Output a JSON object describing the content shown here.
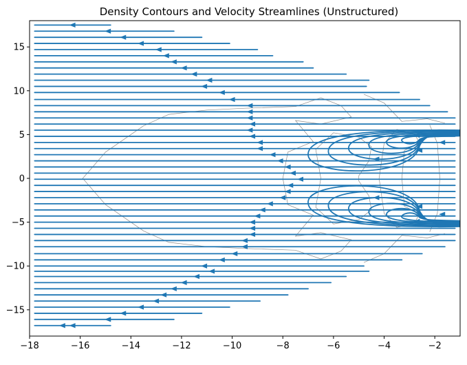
{
  "chart_data": {
    "type": "streamplot",
    "title": "Density Contours and Velocity Streamlines (Unstructured)",
    "xlabel": "",
    "ylabel": "",
    "xlim": [
      -18,
      -1
    ],
    "ylim": [
      -18,
      18
    ],
    "x_ticks": [
      -18,
      -16,
      -14,
      -12,
      -10,
      -8,
      -6,
      -4,
      -2
    ],
    "x_tick_labels": [
      "−18",
      "−16",
      "−14",
      "−12",
      "−10",
      "−8",
      "−6",
      "−4",
      "−2"
    ],
    "y_ticks": [
      -15,
      -10,
      -5,
      0,
      5,
      10,
      15
    ],
    "y_tick_labels": [
      "−15",
      "−10",
      "−5",
      "0",
      "5",
      "10",
      "15"
    ],
    "grid": false,
    "legend": "none",
    "stream_color": "#1f77b4",
    "contour_color": "#8c8c8c",
    "streamlines": [
      {
        "y": 17.5,
        "x_start": -14.8,
        "x_end": -17.8,
        "arrow_x": -16.3
      },
      {
        "y": 16.8,
        "x_start": -12.3,
        "x_end": -17.8,
        "arrow_x": -14.9
      },
      {
        "y": 16.1,
        "x_start": -11.2,
        "x_end": -17.8,
        "arrow_x": -14.3
      },
      {
        "y": 15.4,
        "x_start": -10.1,
        "x_end": -17.8,
        "arrow_x": -13.6
      },
      {
        "y": 14.7,
        "x_start": -9.0,
        "x_end": -17.8,
        "arrow_x": -12.9
      },
      {
        "y": 14.0,
        "x_start": -8.4,
        "x_end": -17.8,
        "arrow_x": -12.6
      },
      {
        "y": 13.3,
        "x_start": -7.2,
        "x_end": -17.8,
        "arrow_x": -12.3
      },
      {
        "y": 12.6,
        "x_start": -6.8,
        "x_end": -17.8,
        "arrow_x": -11.9
      },
      {
        "y": 11.9,
        "x_start": -5.5,
        "x_end": -17.8,
        "arrow_x": -11.5
      },
      {
        "y": 11.2,
        "x_start": -4.6,
        "x_end": -17.8,
        "arrow_x": -10.9
      },
      {
        "y": 10.5,
        "x_start": -4.7,
        "x_end": -17.8,
        "arrow_x": -11.1
      },
      {
        "y": 9.8,
        "x_start": -3.4,
        "x_end": -17.8,
        "arrow_x": -10.4
      },
      {
        "y": 9.0,
        "x_start": -2.6,
        "x_end": -17.8,
        "arrow_x": -10.0
      },
      {
        "y": 8.3,
        "x_start": -2.2,
        "x_end": -17.8,
        "arrow_x": -9.3
      },
      {
        "y": 7.6,
        "x_start": -1.5,
        "x_end": -17.8,
        "arrow_x": -9.3
      },
      {
        "y": 6.9,
        "x_start": -1.2,
        "x_end": -17.8,
        "arrow_x": -9.3
      },
      {
        "y": 6.2,
        "x_start": -1.2,
        "x_end": -17.8,
        "arrow_x": -9.2
      },
      {
        "y": 5.5,
        "x_start": -1.2,
        "x_end": -17.8,
        "arrow_x": -9.3
      },
      {
        "y": 4.8,
        "x_start": -1.2,
        "x_end": -17.8,
        "arrow_x": -9.2
      },
      {
        "y": 4.1,
        "x_start": -1.2,
        "x_end": -17.8,
        "arrow_x": -8.9
      },
      {
        "y": 3.4,
        "x_start": -1.2,
        "x_end": -17.8,
        "arrow_x": -8.9
      },
      {
        "y": 2.7,
        "x_start": -1.2,
        "x_end": -17.8,
        "arrow_x": -8.4
      },
      {
        "y": 2.0,
        "x_start": -1.2,
        "x_end": -17.8,
        "arrow_x": -8.1
      },
      {
        "y": 1.3,
        "x_start": -1.2,
        "x_end": -17.8,
        "arrow_x": -7.8
      },
      {
        "y": 0.6,
        "x_start": -1.2,
        "x_end": -17.8,
        "arrow_x": -7.6
      },
      {
        "y": -0.1,
        "x_start": -1.2,
        "x_end": -17.8,
        "arrow_x": -7.3
      },
      {
        "y": -0.8,
        "x_start": -1.2,
        "x_end": -17.8,
        "arrow_x": -7.7
      },
      {
        "y": -1.5,
        "x_start": -1.2,
        "x_end": -17.8,
        "arrow_x": -7.8
      },
      {
        "y": -2.2,
        "x_start": -1.2,
        "x_end": -17.8,
        "arrow_x": -8.0
      },
      {
        "y": -2.9,
        "x_start": -1.2,
        "x_end": -17.8,
        "arrow_x": -8.5
      },
      {
        "y": -3.6,
        "x_start": -1.2,
        "x_end": -17.8,
        "arrow_x": -8.8
      },
      {
        "y": -4.3,
        "x_start": -1.2,
        "x_end": -17.8,
        "arrow_x": -9.0
      },
      {
        "y": -5.0,
        "x_start": -1.2,
        "x_end": -17.8,
        "arrow_x": -9.2
      },
      {
        "y": -5.7,
        "x_start": -1.2,
        "x_end": -17.8,
        "arrow_x": -9.2
      },
      {
        "y": -6.4,
        "x_start": -1.2,
        "x_end": -17.8,
        "arrow_x": -9.2
      },
      {
        "y": -7.1,
        "x_start": -1.2,
        "x_end": -17.8,
        "arrow_x": -9.5
      },
      {
        "y": -7.8,
        "x_start": -1.6,
        "x_end": -17.8,
        "arrow_x": -9.5
      },
      {
        "y": -8.6,
        "x_start": -2.5,
        "x_end": -17.8,
        "arrow_x": -9.9
      },
      {
        "y": -9.3,
        "x_start": -3.3,
        "x_end": -17.8,
        "arrow_x": -10.4
      },
      {
        "y": -10.0,
        "x_start": -4.8,
        "x_end": -17.8,
        "arrow_x": -11.1
      },
      {
        "y": -10.6,
        "x_start": -4.6,
        "x_end": -17.8,
        "arrow_x": -10.8
      },
      {
        "y": -11.2,
        "x_start": -5.5,
        "x_end": -17.8,
        "arrow_x": -11.4
      },
      {
        "y": -11.9,
        "x_start": -6.1,
        "x_end": -17.8,
        "arrow_x": -11.9
      },
      {
        "y": -12.6,
        "x_start": -7.0,
        "x_end": -17.8,
        "arrow_x": -12.3
      },
      {
        "y": -13.3,
        "x_start": -7.8,
        "x_end": -17.8,
        "arrow_x": -12.7
      },
      {
        "y": -14.0,
        "x_start": -8.9,
        "x_end": -17.8,
        "arrow_x": -13.0
      },
      {
        "y": -14.7,
        "x_start": -10.1,
        "x_end": -17.8,
        "arrow_x": -13.6
      },
      {
        "y": -15.4,
        "x_start": -11.2,
        "x_end": -17.8,
        "arrow_x": -14.3
      },
      {
        "y": -16.1,
        "x_start": -12.3,
        "x_end": -17.8,
        "arrow_x": -14.9
      },
      {
        "y": -16.8,
        "x_start": -14.8,
        "x_end": -17.8,
        "arrow_x": -16.3
      }
    ],
    "extra_arrows": [
      {
        "x": -16.7,
        "y": -16.8
      },
      {
        "x": -14.9,
        "y": -16.1
      }
    ],
    "vortices": [
      {
        "center_x": -2.5,
        "center_y": 4.6,
        "orientation": "upper"
      },
      {
        "center_x": -2.5,
        "center_y": -4.6,
        "orientation": "lower"
      }
    ],
    "contours": [
      {
        "points": [
          [
            -13.5,
            6.0
          ],
          [
            -12.5,
            7.3
          ],
          [
            -11.0,
            7.8
          ],
          [
            -9.5,
            8.0
          ],
          [
            -7.5,
            8.2
          ],
          [
            -6.5,
            9.2
          ],
          [
            -5.7,
            8.3
          ],
          [
            -5.3,
            7.0
          ],
          [
            -6.5,
            6.2
          ],
          [
            -7.5,
            6.6
          ],
          [
            -6.8,
            4.2
          ],
          [
            -7.8,
            3.0
          ],
          [
            -8.0,
            0.0
          ],
          [
            -7.8,
            -3.0
          ],
          [
            -6.8,
            -4.2
          ],
          [
            -7.5,
            -6.6
          ],
          [
            -6.5,
            -6.2
          ],
          [
            -5.3,
            -7.0
          ],
          [
            -5.7,
            -8.3
          ],
          [
            -6.5,
            -9.2
          ],
          [
            -7.5,
            -8.2
          ],
          [
            -9.5,
            -8.0
          ],
          [
            -11.0,
            -7.8
          ],
          [
            -12.5,
            -7.3
          ],
          [
            -13.5,
            -6.0
          ],
          [
            -15.0,
            -3.0
          ],
          [
            -15.9,
            0.0
          ],
          [
            -15.0,
            3.0
          ],
          [
            -13.5,
            6.0
          ]
        ]
      },
      {
        "points": [
          [
            -6.0,
            5.2
          ],
          [
            -5.0,
            4.7
          ],
          [
            -4.5,
            3.6
          ],
          [
            -4.6,
            2.0
          ],
          [
            -5.0,
            0.3
          ],
          [
            -5.0,
            -0.3
          ],
          [
            -4.6,
            -2.0
          ],
          [
            -4.5,
            -3.6
          ],
          [
            -5.0,
            -4.7
          ],
          [
            -6.0,
            -5.2
          ],
          [
            -6.7,
            -3.3
          ],
          [
            -6.5,
            0.0
          ],
          [
            -6.7,
            3.3
          ],
          [
            -6.0,
            5.2
          ]
        ]
      },
      {
        "points": [
          [
            -3.5,
            5.6
          ],
          [
            -2.8,
            5.1
          ],
          [
            -2.6,
            4.0
          ],
          [
            -3.2,
            3.2
          ],
          [
            -3.3,
            0.0
          ],
          [
            -3.2,
            -3.2
          ],
          [
            -2.6,
            -4.0
          ],
          [
            -2.8,
            -5.1
          ],
          [
            -3.5,
            -5.6
          ],
          [
            -4.0,
            -4.0
          ],
          [
            -4.2,
            0.0
          ],
          [
            -4.0,
            4.0
          ],
          [
            -3.5,
            5.6
          ]
        ]
      },
      {
        "points": [
          [
            -2.2,
            6.1
          ],
          [
            -1.9,
            4.0
          ],
          [
            -1.8,
            0.0
          ],
          [
            -1.9,
            -4.0
          ],
          [
            -2.2,
            -6.1
          ]
        ]
      },
      {
        "points": [
          [
            -4.8,
            9.6
          ],
          [
            -4.0,
            8.6
          ],
          [
            -3.3,
            6.5
          ],
          [
            -2.3,
            6.8
          ],
          [
            -1.6,
            6.3
          ]
        ]
      },
      {
        "points": [
          [
            -4.8,
            -9.6
          ],
          [
            -4.0,
            -8.6
          ],
          [
            -3.3,
            -6.5
          ],
          [
            -2.3,
            -6.8
          ],
          [
            -1.6,
            -6.3
          ]
        ]
      }
    ]
  }
}
